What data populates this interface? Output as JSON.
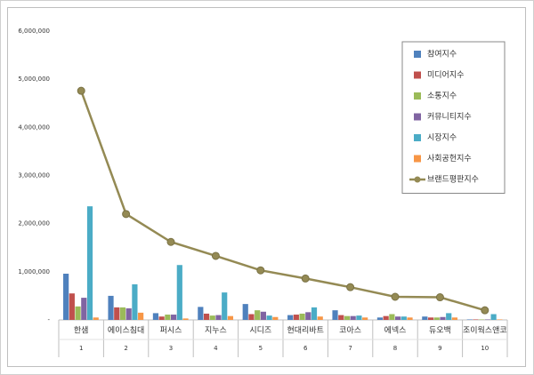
{
  "chart_data": {
    "type": "bar",
    "categories": [
      "한샘",
      "에이스침대",
      "퍼시스",
      "지누스",
      "시디즈",
      "현대리바트",
      "코아스",
      "에넥스",
      "듀오백",
      "조이웍스앤코"
    ],
    "category_numbers": [
      1,
      2,
      3,
      4,
      5,
      6,
      7,
      8,
      9,
      10
    ],
    "ylim": [
      0,
      6000000
    ],
    "yticks": [
      {
        "value": 0,
        "label": "-"
      },
      {
        "value": 1000000,
        "label": "1,000,000"
      },
      {
        "value": 2000000,
        "label": "2,000,000"
      },
      {
        "value": 3000000,
        "label": "3,000,000"
      },
      {
        "value": 4000000,
        "label": "4,000,000"
      },
      {
        "value": 5000000,
        "label": "5,000,000"
      },
      {
        "value": 6000000,
        "label": "6,000,000"
      }
    ],
    "grid": false,
    "legend": "upper right",
    "series": [
      {
        "name": "참여지수",
        "color": "#4f81bd",
        "values": [
          960000,
          500000,
          140000,
          270000,
          330000,
          100000,
          200000,
          50000,
          70000,
          10000
        ]
      },
      {
        "name": "미디어지수",
        "color": "#c0504d",
        "values": [
          550000,
          260000,
          70000,
          130000,
          120000,
          110000,
          100000,
          80000,
          50000,
          10000
        ]
      },
      {
        "name": "소통지수",
        "color": "#9bbb59",
        "values": [
          280000,
          260000,
          110000,
          90000,
          200000,
          130000,
          80000,
          120000,
          50000,
          10000
        ]
      },
      {
        "name": "커뮤니티지수",
        "color": "#8064a2",
        "values": [
          460000,
          240000,
          110000,
          100000,
          170000,
          160000,
          80000,
          70000,
          60000,
          10000
        ]
      },
      {
        "name": "시장지수",
        "color": "#4bacc6",
        "values": [
          2360000,
          740000,
          1140000,
          570000,
          90000,
          260000,
          90000,
          70000,
          140000,
          120000
        ]
      },
      {
        "name": "사회공헌지수",
        "color": "#f79646",
        "values": [
          50000,
          150000,
          30000,
          80000,
          60000,
          70000,
          50000,
          50000,
          50000,
          10000
        ]
      },
      {
        "name": "브랜드평판지수",
        "color": "#948a54",
        "type": "line",
        "values": [
          4760000,
          2200000,
          1620000,
          1330000,
          1030000,
          860000,
          680000,
          480000,
          470000,
          200000
        ]
      }
    ]
  }
}
